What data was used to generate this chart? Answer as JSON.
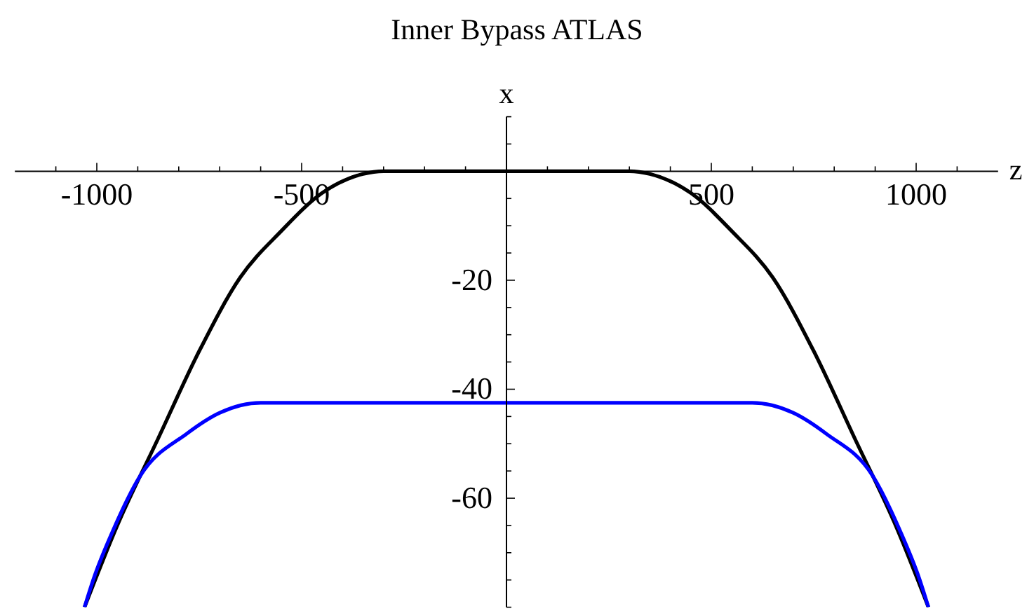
{
  "chart_data": {
    "type": "line",
    "title": "Inner Bypass ATLAS",
    "xlabel": "z",
    "ylabel": "x",
    "xlim": [
      -1200,
      1200
    ],
    "ylim": [
      -80,
      10
    ],
    "xticks": [
      {
        "value": -1100,
        "label": null
      },
      -1000,
      {
        "value": -900,
        "label": null
      },
      {
        "value": -800,
        "label": null
      },
      {
        "value": -700,
        "label": null
      },
      {
        "value": -600,
        "label": null
      },
      -500,
      {
        "value": -400,
        "label": null
      },
      {
        "value": -300,
        "label": null
      },
      {
        "value": -200,
        "label": null
      },
      {
        "value": -100,
        "label": null
      },
      {
        "value": 100,
        "label": null
      },
      {
        "value": 200,
        "label": null
      },
      {
        "value": 300,
        "label": null
      },
      {
        "value": 400,
        "label": null
      },
      500,
      {
        "value": 600,
        "label": null
      },
      {
        "value": 700,
        "label": null
      },
      {
        "value": 800,
        "label": null
      },
      {
        "value": 900,
        "label": null
      },
      1000,
      {
        "value": 1100,
        "label": null
      }
    ],
    "yticks": [
      {
        "value": 10,
        "label": null
      },
      {
        "value": 5,
        "label": null
      },
      {
        "value": -5,
        "label": null
      },
      {
        "value": -10,
        "label": null
      },
      {
        "value": -15,
        "label": null
      },
      -20,
      {
        "value": -25,
        "label": null
      },
      {
        "value": -30,
        "label": null
      },
      {
        "value": -35,
        "label": null
      },
      -40,
      {
        "value": -45,
        "label": null
      },
      {
        "value": -50,
        "label": null
      },
      {
        "value": -55,
        "label": null
      },
      -60,
      {
        "value": -65,
        "label": null
      },
      {
        "value": -70,
        "label": null
      },
      {
        "value": -75,
        "label": null
      },
      {
        "value": -80,
        "label": null
      }
    ],
    "series": [
      {
        "color": "#000000",
        "x": [
          -1030,
          -950,
          -850,
          -750,
          -650,
          -550,
          -450,
          -350,
          -300,
          0,
          300,
          350,
          450,
          550,
          650,
          750,
          850,
          950,
          1030
        ],
        "values": [
          -80,
          -65,
          -49,
          -33,
          -19.5,
          -11,
          -4,
          -0.5,
          0,
          0,
          0,
          -0.5,
          -4,
          -11,
          -19.5,
          -33,
          -49,
          -65,
          -80
        ]
      },
      {
        "color": "#0000ff",
        "x": [
          -1030,
          -1007,
          -962,
          -894,
          -781,
          -699,
          -600,
          0,
          600,
          699,
          781,
          894,
          962,
          1007,
          1030
        ],
        "values": [
          -80,
          -74.6,
          -66.2,
          -55.9,
          -48.2,
          -44.3,
          -42.5,
          -42.5,
          -42.5,
          -44.3,
          -48.2,
          -55.9,
          -66.2,
          -74.6,
          -80
        ]
      }
    ]
  }
}
